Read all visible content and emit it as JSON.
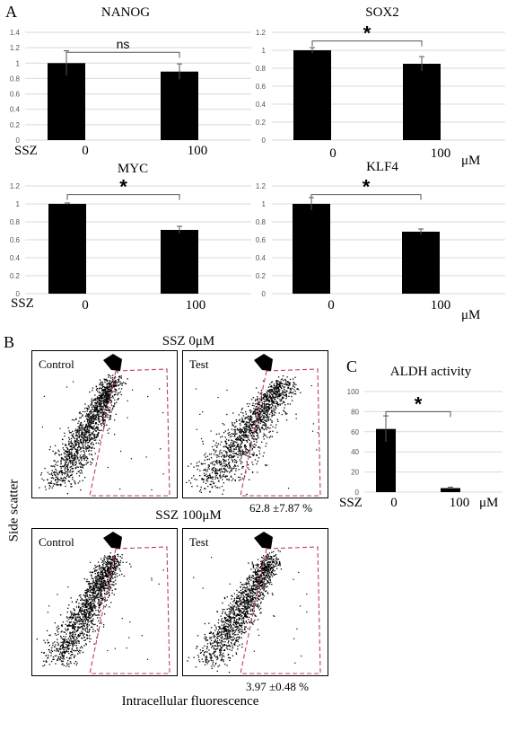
{
  "panel_labels": {
    "a": "A",
    "b": "B",
    "c": "C"
  },
  "ssz_label": "SSZ",
  "unit_label": "μM",
  "chart_data": [
    {
      "type": "bar",
      "title": "NANOG",
      "categories": [
        "0",
        "100"
      ],
      "values": [
        1.0,
        0.89
      ],
      "errors": [
        0.16,
        0.1
      ],
      "ylim": [
        0,
        1.4
      ],
      "yticks": [
        "0",
        "0.2",
        "0.4",
        "0.6",
        "0.8",
        "1",
        "1.2",
        "1.4"
      ],
      "significance": "ns"
    },
    {
      "type": "bar",
      "title": "SOX2",
      "categories": [
        "0",
        "100"
      ],
      "values": [
        1.0,
        0.85
      ],
      "errors": [
        0.03,
        0.08
      ],
      "ylim": [
        0,
        1.2
      ],
      "yticks": [
        "0",
        "0.2",
        "0.4",
        "0.6",
        "0.8",
        "1",
        "1.2"
      ],
      "significance": "*"
    },
    {
      "type": "bar",
      "title": "MYC",
      "categories": [
        "0",
        "100"
      ],
      "values": [
        1.0,
        0.71
      ],
      "errors": [
        0.01,
        0.04
      ],
      "ylim": [
        0,
        1.2
      ],
      "yticks": [
        "0",
        "0.2",
        "0.4",
        "0.6",
        "0.8",
        "1",
        "1.2"
      ],
      "significance": "*"
    },
    {
      "type": "bar",
      "title": "KLF4",
      "categories": [
        "0",
        "100"
      ],
      "values": [
        1.0,
        0.69
      ],
      "errors": [
        0.07,
        0.03
      ],
      "ylim": [
        0,
        1.2
      ],
      "yticks": [
        "0",
        "0.2",
        "0.4",
        "0.6",
        "0.8",
        "1",
        "1.2"
      ],
      "significance": "*"
    },
    {
      "type": "bar",
      "title": "ALDH activity",
      "categories": [
        "0",
        "100"
      ],
      "values": [
        62.8,
        3.97
      ],
      "errors": [
        13,
        1
      ],
      "ylim": [
        0,
        100
      ],
      "yticks": [
        "0",
        "20",
        "40",
        "60",
        "80",
        "100"
      ],
      "significance": "*"
    }
  ],
  "flow": {
    "group1_title": "SSZ 0μM",
    "group2_title": "SSZ 100μM",
    "control_label": "Control",
    "test_label": "Test",
    "group1_result": "62.8 ±7.87 %",
    "group2_result": "3.97 ±0.48 %",
    "y_axis": "Side scatter",
    "x_axis": "Intracellular fluorescence"
  },
  "colors": {
    "bar": "#000000",
    "grid": "#d9d9d9",
    "gate": "#c0405a",
    "dots": "#000000"
  }
}
